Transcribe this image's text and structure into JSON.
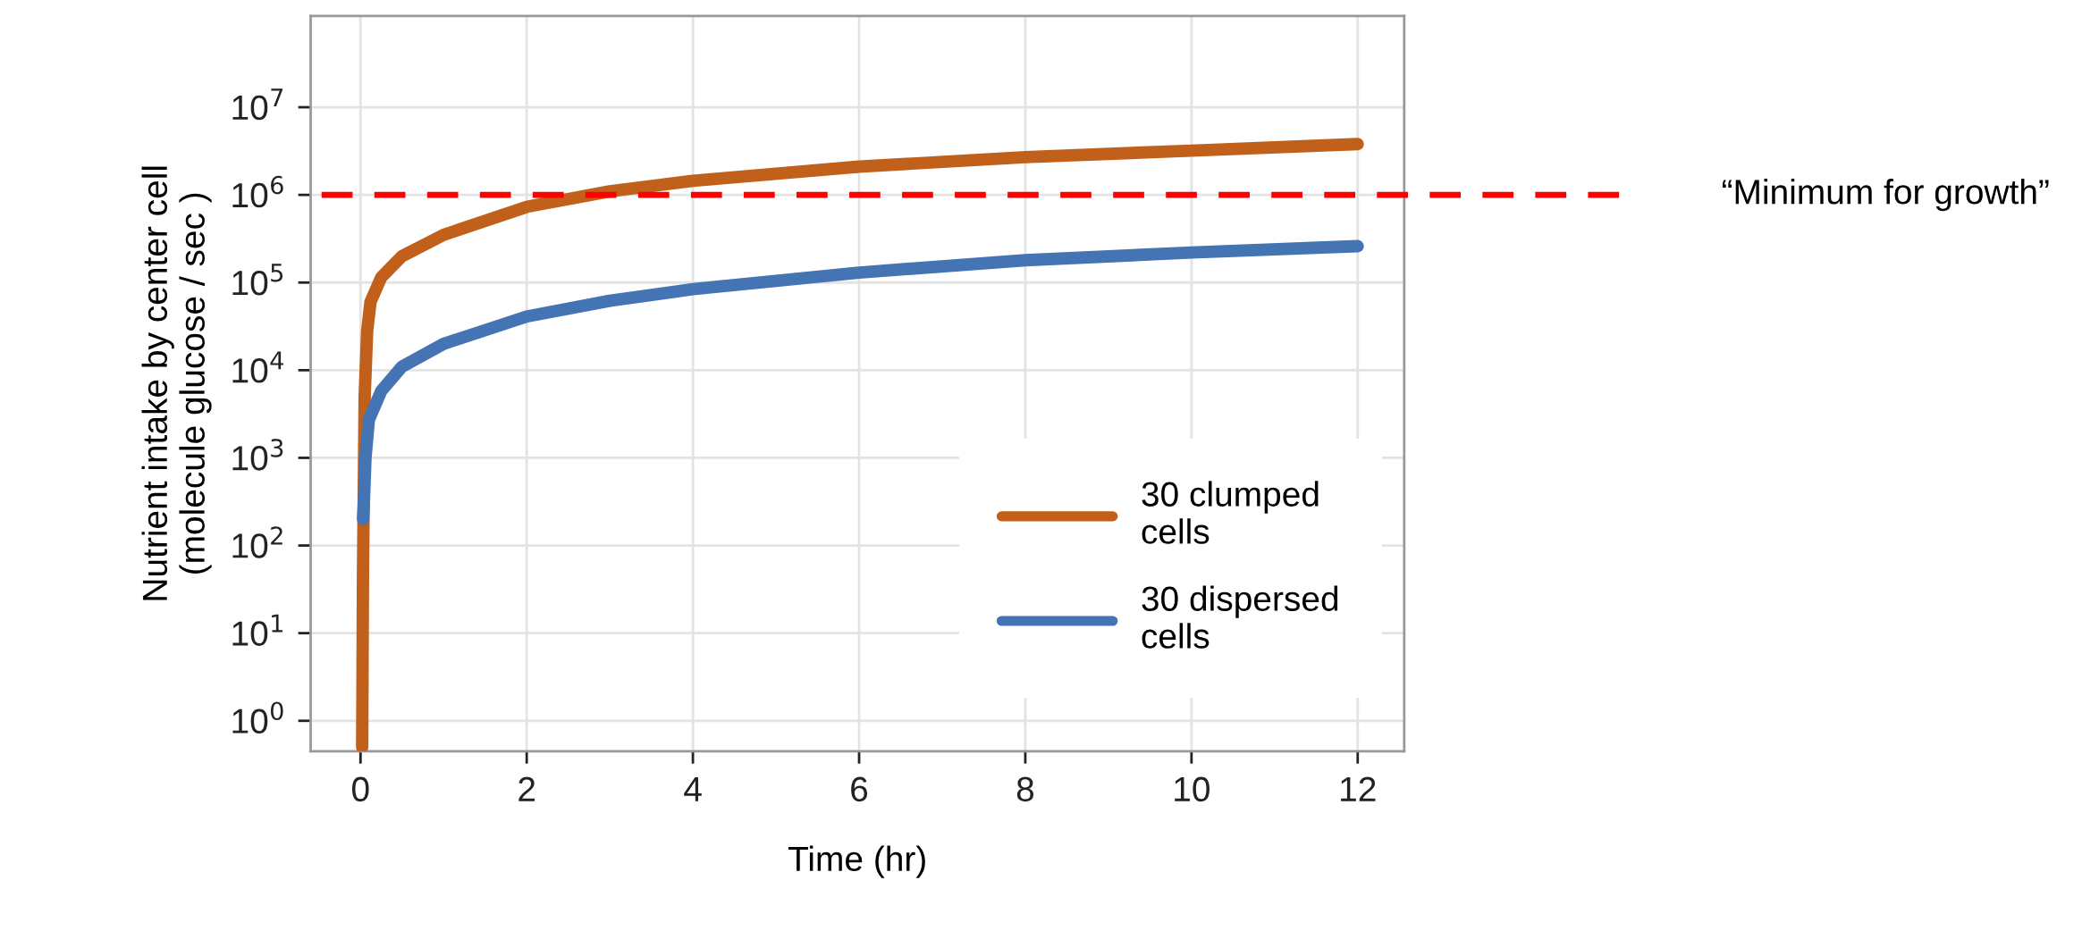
{
  "chart_data": {
    "type": "line",
    "xlabel": "Time (hr)",
    "ylabel": "Nutrient intake by center cell\n(molecule glucose / sec )",
    "log": "y",
    "xlim": [
      -0.6,
      12.56
    ],
    "xticks": [
      0,
      2,
      4,
      6,
      8,
      10,
      12
    ],
    "ylim": [
      0.45,
      110000000.0
    ],
    "yticks": [
      {
        "value": 1,
        "label": "10$^{0}$"
      },
      {
        "value": 10,
        "label": "10$^{1}$"
      },
      {
        "value": 100,
        "label": "10$^{2}$"
      },
      {
        "value": 1000,
        "label": "10$^{3}$"
      },
      {
        "value": 10000,
        "label": "10$^{4}$"
      },
      {
        "value": 100000,
        "label": "10$^{5}$"
      },
      {
        "value": 1000000,
        "label": "10$^{6}$"
      },
      {
        "value": 10000000,
        "label": "10$^{7}$"
      }
    ],
    "grid": true,
    "legend": "bottom right",
    "line_style": "solid",
    "marker": "none",
    "series": [
      {
        "name": "30 clumped\ncells",
        "color": "#c0601a",
        "x": [
          0.02,
          0.03,
          0.05,
          0.08,
          0.12,
          0.25,
          0.5,
          1,
          2,
          3,
          4,
          6,
          8,
          10,
          12
        ],
        "values": [
          0.5,
          50,
          5000,
          28000,
          60000,
          115000,
          200000,
          350000,
          730000,
          1100000,
          1450000,
          2100000,
          2700000,
          3200000,
          3800000
        ]
      },
      {
        "name": "30 dispersed\ncells",
        "color": "#4474b4",
        "x": [
          0.03,
          0.04,
          0.06,
          0.1,
          0.25,
          0.5,
          1,
          2,
          3,
          4,
          6,
          8,
          10,
          12
        ],
        "values": [
          200,
          300,
          1000,
          2700,
          5800,
          11000,
          20000,
          41000,
          62000,
          84000,
          130000,
          180000,
          220000,
          260000
        ]
      }
    ],
    "ref_lines": [
      {
        "axis": "y",
        "value": 1000000,
        "label": "“Minimum for growth”",
        "color": "#ff0000",
        "line_style": "dashed"
      }
    ]
  }
}
